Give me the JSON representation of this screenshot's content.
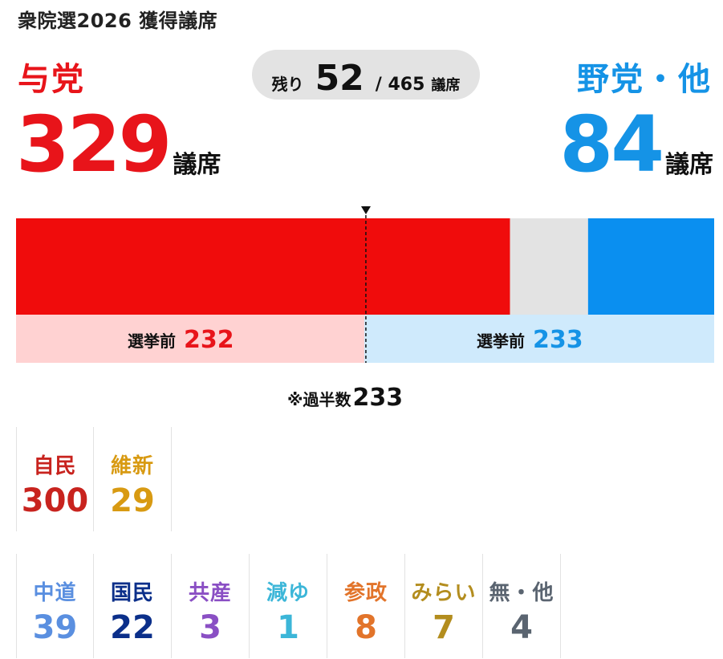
{
  "header": {
    "title": "衆院選2026 獲得議席"
  },
  "ruling": {
    "label": "与党",
    "seats": "329",
    "unit": "議席",
    "before_label": "選挙前",
    "before_seats": "232",
    "color": "#e8141a"
  },
  "opposition": {
    "label": "野党・他",
    "seats": "84",
    "unit": "議席",
    "before_label": "選挙前",
    "before_seats": "233",
    "color": "#1593e6"
  },
  "remaining": {
    "label": "残り",
    "value": "52",
    "total": "/ 465",
    "unit": "議席",
    "color": "#e3e3e3"
  },
  "majority": {
    "label": "※過半数",
    "value": "233"
  },
  "chart_data": {
    "type": "bar",
    "orientation": "horizontal-stacked",
    "total": 465,
    "segments": [
      {
        "key": "ruling",
        "value": 329,
        "color": "#f00c0c"
      },
      {
        "key": "remaining",
        "value": 52,
        "color": "#e3e3e3"
      },
      {
        "key": "opposition",
        "value": 84,
        "color": "#0a8ff0"
      }
    ],
    "before": [
      {
        "key": "ruling",
        "value": 232,
        "color": "#ffd2d2"
      },
      {
        "key": "opposition",
        "value": 233,
        "color": "#cfeafc"
      }
    ],
    "majority_line": 233
  },
  "parties_ruling": [
    {
      "name": "自民",
      "seats": "300",
      "color": "#c8231e"
    },
    {
      "name": "維新",
      "seats": "29",
      "color": "#d89a12"
    }
  ],
  "parties_opposition": [
    {
      "name": "中道",
      "seats": "39",
      "color": "#5a8fe0"
    },
    {
      "name": "国民",
      "seats": "22",
      "color": "#0b2f8a"
    },
    {
      "name": "共産",
      "seats": "3",
      "color": "#8a4fc4"
    },
    {
      "name": "減ゆ",
      "seats": "1",
      "color": "#3cb6d8"
    },
    {
      "name": "参政",
      "seats": "8",
      "color": "#e2742a"
    },
    {
      "name": "みらい",
      "seats": "7",
      "color": "#b38d1e"
    },
    {
      "name": "無・他",
      "seats": "4",
      "color": "#5a6470"
    }
  ]
}
